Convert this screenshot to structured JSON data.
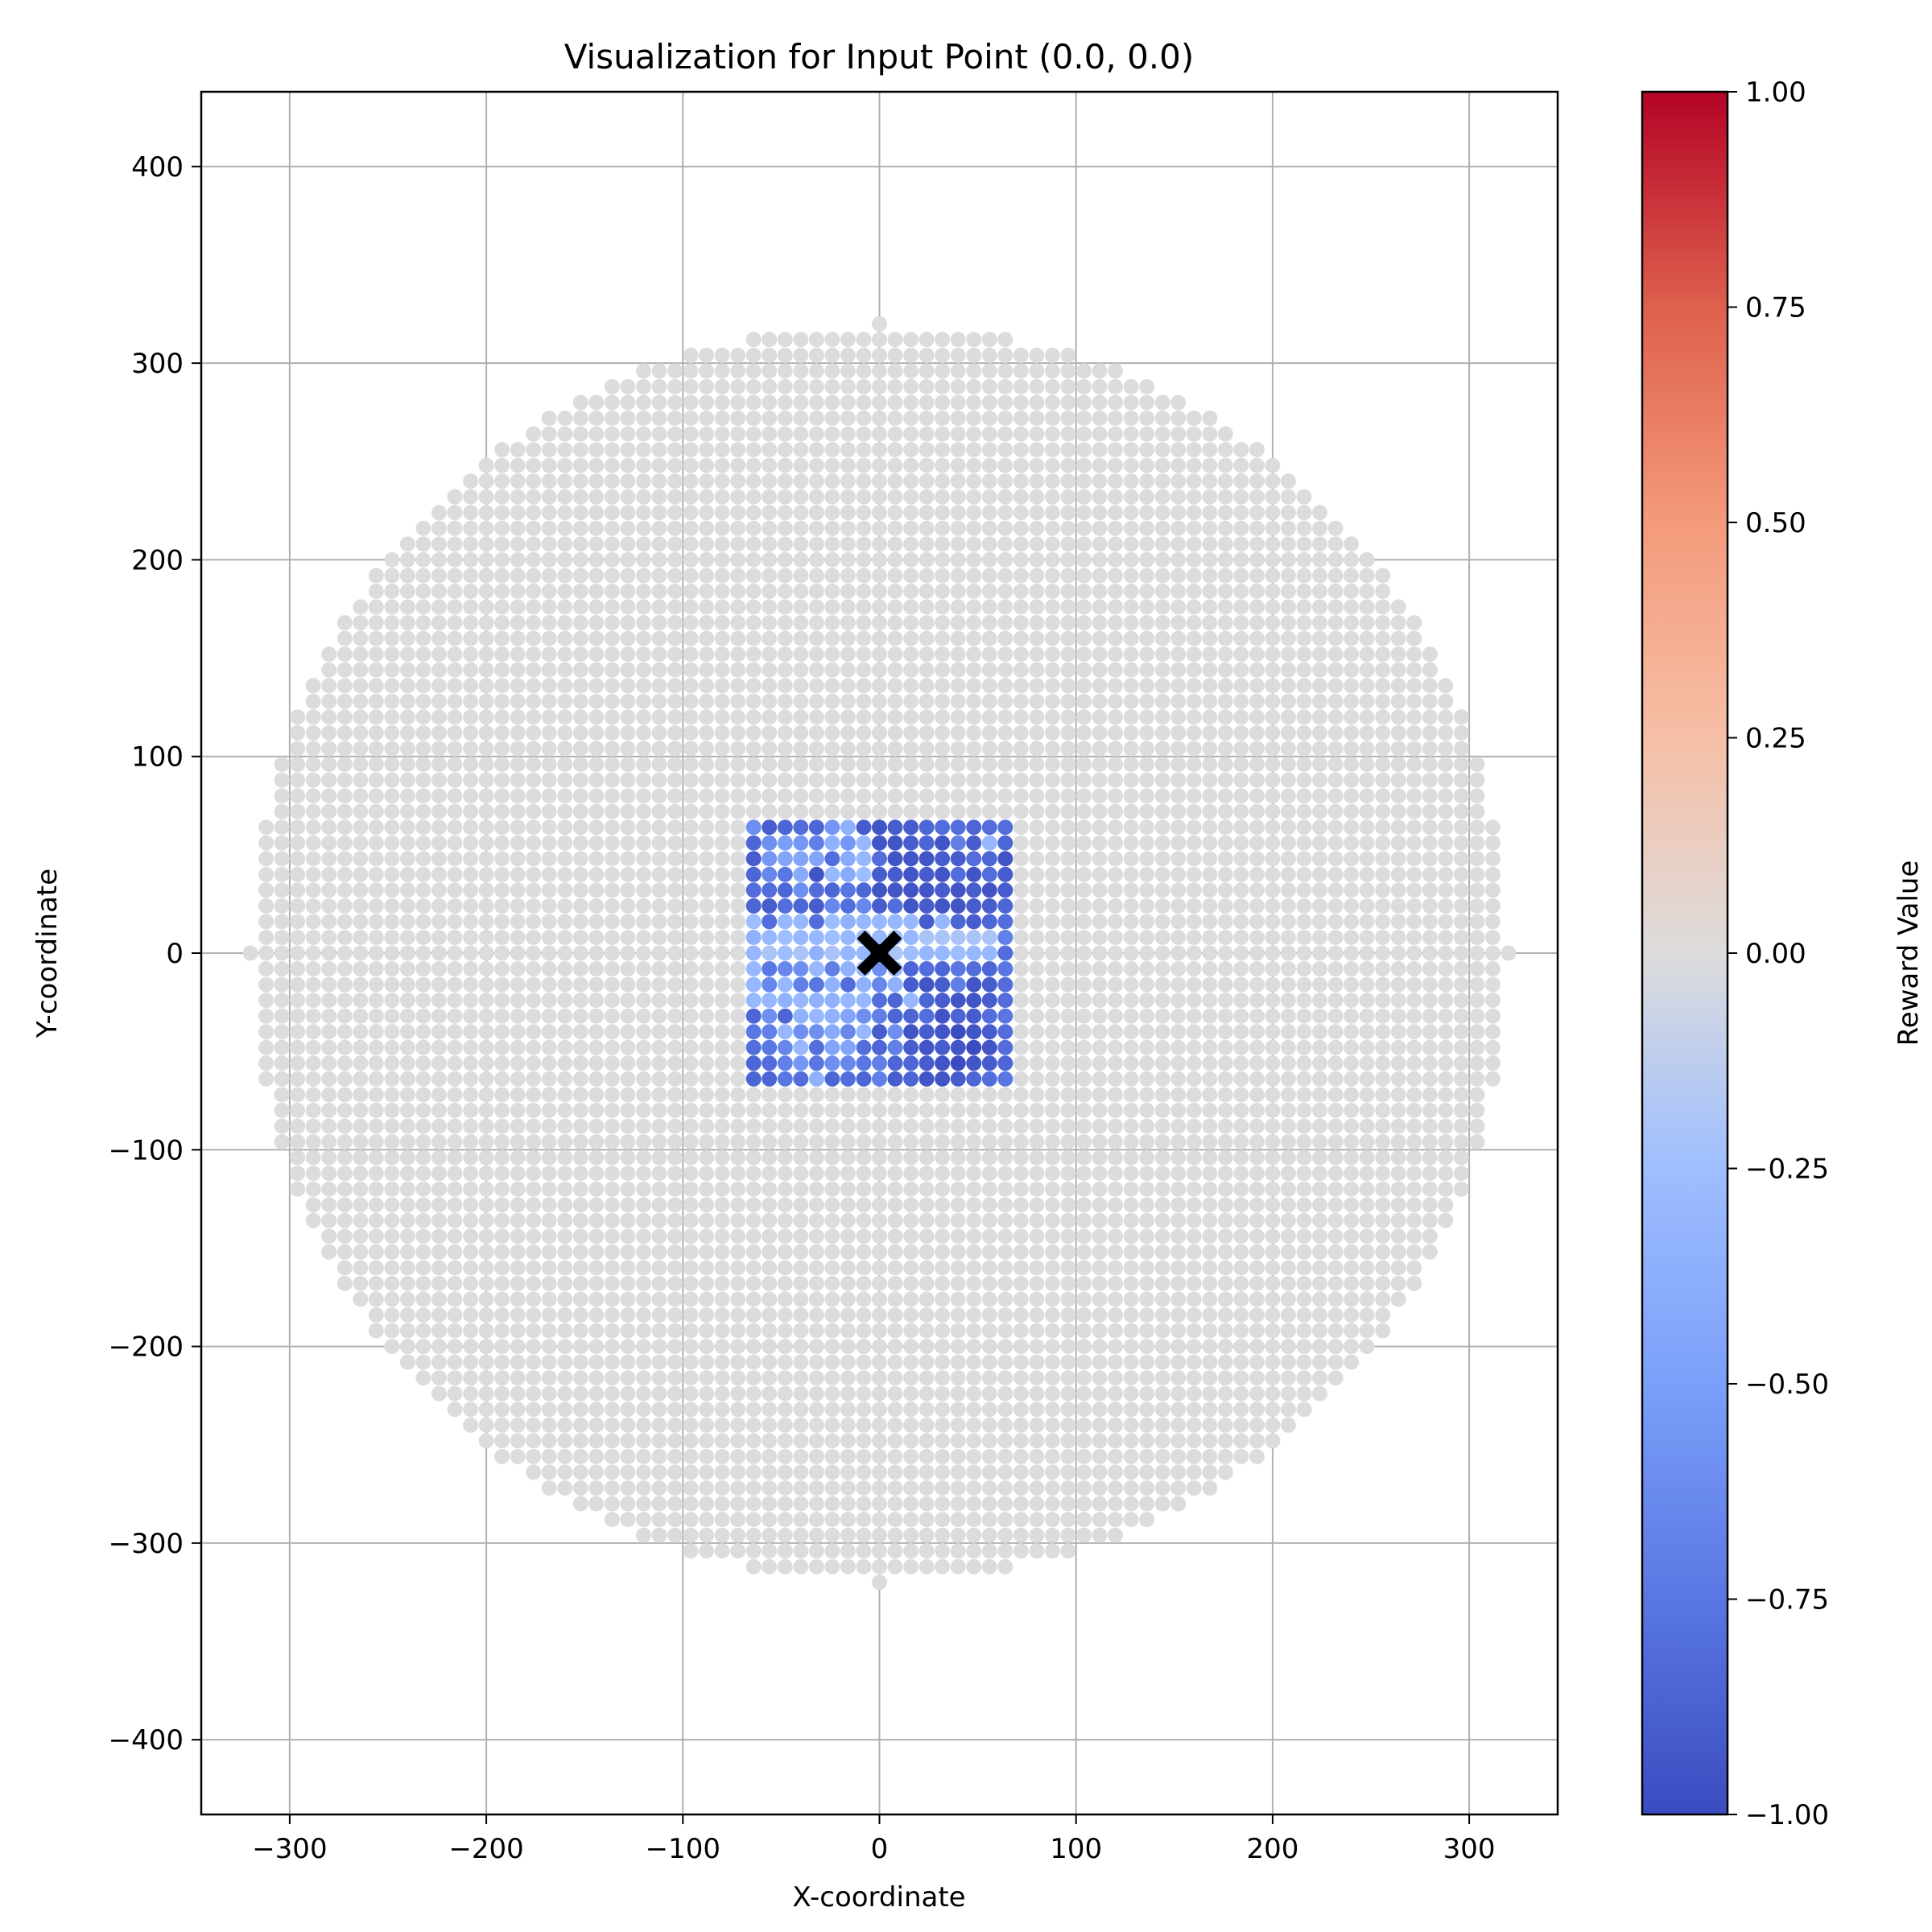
{
  "chart_data": {
    "type": "scatter",
    "title": "Visualization for Input Point (0.0, 0.0)",
    "xlabel": "X-coordinate",
    "ylabel": "Y-coordinate",
    "xlim": [
      -345,
      345
    ],
    "ylim": [
      -438,
      438
    ],
    "xticks": [
      -300,
      -200,
      -100,
      0,
      100,
      200,
      300
    ],
    "yticks": [
      -400,
      -300,
      -200,
      -100,
      0,
      100,
      200,
      300,
      400
    ],
    "grid": true,
    "grid_spacing": 8,
    "background_region": {
      "shape": "disk",
      "radius": 320,
      "value": 0.0
    },
    "focus_region": {
      "xmin": -64,
      "xmax": 64,
      "ymin": -64,
      "ymax": 64
    },
    "input_point": {
      "x": 0.0,
      "y": 0.0,
      "marker": "X",
      "color": "#000000"
    },
    "colorbar": {
      "label": "Reward Value",
      "colormap": "coolwarm",
      "vmin": -1.0,
      "vmax": 1.0,
      "ticks": [
        1.0,
        0.75,
        0.5,
        0.25,
        0.0,
        -0.25,
        -0.5,
        -0.75,
        -1.0
      ],
      "tick_labels": [
        "1.00",
        "0.75",
        "0.50",
        "0.25",
        "0.00",
        "−0.25",
        "−0.50",
        "−0.75",
        "−1.00"
      ]
    },
    "focus_grid_values": [
      [
        -0.6,
        -0.9,
        -0.85,
        -0.8,
        -0.85,
        -0.55,
        -0.35,
        -0.9,
        -0.95,
        -0.9,
        -0.9,
        -0.85,
        -0.8,
        -0.8,
        -0.85,
        -0.8,
        -0.8
      ],
      [
        -0.85,
        -0.6,
        -0.5,
        -0.55,
        -0.7,
        -0.35,
        -0.55,
        -0.3,
        -0.95,
        -0.95,
        -0.9,
        -0.85,
        -0.95,
        -0.7,
        -0.9,
        -0.3,
        -0.85
      ],
      [
        -0.9,
        -0.55,
        -0.45,
        -0.45,
        -0.45,
        -0.8,
        -0.4,
        -0.3,
        -0.8,
        -0.95,
        -0.95,
        -0.95,
        -0.9,
        -0.9,
        -0.8,
        -0.85,
        -0.95
      ],
      [
        -0.85,
        -0.65,
        -0.75,
        -0.4,
        -0.95,
        -0.3,
        -0.4,
        -0.25,
        -0.9,
        -0.9,
        -0.95,
        -0.9,
        -0.95,
        -0.8,
        -0.95,
        -0.8,
        -0.9
      ],
      [
        -0.8,
        -0.8,
        -0.85,
        -0.6,
        -0.8,
        -0.85,
        -0.75,
        -0.85,
        -0.95,
        -0.95,
        -0.95,
        -0.95,
        -0.9,
        -0.95,
        -0.9,
        -0.95,
        -0.9
      ],
      [
        -0.85,
        -0.9,
        -0.8,
        -0.85,
        -0.9,
        -0.65,
        -0.8,
        -0.65,
        -0.9,
        -0.8,
        -0.95,
        -0.9,
        -0.95,
        -0.95,
        -0.9,
        -0.9,
        -0.85
      ],
      [
        -0.25,
        -0.8,
        -0.3,
        -0.3,
        -0.8,
        -0.25,
        -0.35,
        -0.3,
        -0.3,
        -0.3,
        -0.3,
        -0.9,
        -0.3,
        -0.85,
        -0.9,
        -0.85,
        -0.8
      ],
      [
        -0.35,
        -0.3,
        -0.25,
        -0.3,
        -0.3,
        -0.25,
        -0.3,
        -0.3,
        -0.3,
        -0.25,
        -0.3,
        -0.2,
        -0.2,
        -0.2,
        -0.2,
        -0.2,
        -0.7
      ],
      [
        -0.3,
        -0.2,
        -0.25,
        -0.2,
        -0.35,
        -0.2,
        -0.3,
        -0.3,
        -0.85,
        -0.2,
        -0.25,
        -0.3,
        -0.3,
        -0.25,
        -0.3,
        -0.3,
        -0.8
      ],
      [
        -0.3,
        -0.75,
        -0.65,
        -0.6,
        -0.3,
        -0.7,
        -0.35,
        -0.3,
        -0.6,
        -0.3,
        -0.85,
        -0.8,
        -0.85,
        -0.75,
        -0.8,
        -0.85,
        -0.75
      ],
      [
        -0.3,
        -0.65,
        -0.3,
        -0.7,
        -0.75,
        -0.35,
        -0.8,
        -0.35,
        -0.65,
        -0.35,
        -0.9,
        -0.95,
        -0.9,
        -0.7,
        -0.95,
        -0.9,
        -0.8
      ],
      [
        -0.3,
        -0.3,
        -0.35,
        -0.3,
        -0.35,
        -0.35,
        -0.3,
        -0.3,
        -0.8,
        -0.85,
        -0.3,
        -0.85,
        -0.9,
        -0.95,
        -0.95,
        -0.9,
        -0.8
      ],
      [
        -0.85,
        -0.6,
        -0.85,
        -0.35,
        -0.3,
        -0.35,
        -0.45,
        -0.6,
        -0.7,
        -0.85,
        -0.85,
        -0.8,
        -0.95,
        -0.85,
        -0.9,
        -0.8,
        -0.75
      ],
      [
        -0.75,
        -0.7,
        -0.3,
        -0.6,
        -0.6,
        -0.4,
        -0.65,
        -0.3,
        -0.9,
        -0.6,
        -0.95,
        -0.9,
        -0.95,
        -1.0,
        -0.95,
        -0.9,
        -0.8
      ],
      [
        -0.8,
        -0.75,
        -0.65,
        -0.3,
        -0.8,
        -0.45,
        -0.45,
        -0.8,
        -0.85,
        -0.7,
        -0.9,
        -0.95,
        -0.9,
        -0.95,
        -1.0,
        -0.95,
        -0.8
      ],
      [
        -0.85,
        -0.8,
        -0.7,
        -0.55,
        -0.75,
        -0.6,
        -0.65,
        -0.75,
        -0.7,
        -0.85,
        -0.85,
        -0.9,
        -0.95,
        -1.0,
        -0.95,
        -0.9,
        -0.85
      ],
      [
        -0.85,
        -0.85,
        -0.75,
        -0.8,
        -0.35,
        -0.85,
        -0.8,
        -0.85,
        -0.7,
        -0.9,
        -0.85,
        -0.95,
        -0.95,
        -0.9,
        -0.85,
        -0.8,
        -0.75
      ]
    ]
  }
}
